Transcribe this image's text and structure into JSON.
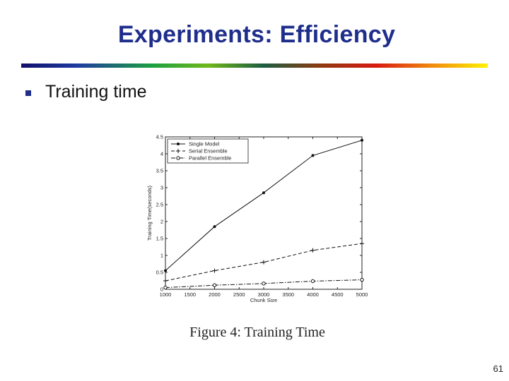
{
  "slide": {
    "title": "Experiments: Efficiency",
    "bullet": "Training time",
    "caption": "Figure 4:  Training Time",
    "page_number": "61"
  },
  "chart_data": {
    "type": "line",
    "title": "",
    "xlabel": "Chunk Size",
    "ylabel": "Training Time(seconds)",
    "xlim": [
      1000,
      5000
    ],
    "ylim": [
      0,
      4.5
    ],
    "x_ticks": [
      "1000",
      "1500",
      "2000",
      "2500",
      "3000",
      "3500",
      "4000",
      "4500",
      "5000"
    ],
    "y_ticks": [
      "0",
      "0.5",
      "1",
      "1.5",
      "2",
      "2.5",
      "3",
      "3.5",
      "4",
      "4.5"
    ],
    "grid": false,
    "legend_position": "top-left",
    "x": [
      1000,
      2000,
      3000,
      4000,
      5000
    ],
    "series": [
      {
        "name": "Single Model",
        "values": [
          0.55,
          1.85,
          2.85,
          3.95,
          4.4
        ],
        "line": "solid",
        "marker": "dot"
      },
      {
        "name": "Serial Ensemble",
        "values": [
          0.25,
          0.55,
          0.8,
          1.15,
          1.35
        ],
        "line": "dashed",
        "marker": "plus"
      },
      {
        "name": "Parallel Ensemble",
        "values": [
          0.05,
          0.12,
          0.17,
          0.24,
          0.28
        ],
        "line": "dashdot",
        "marker": "circle"
      }
    ]
  }
}
